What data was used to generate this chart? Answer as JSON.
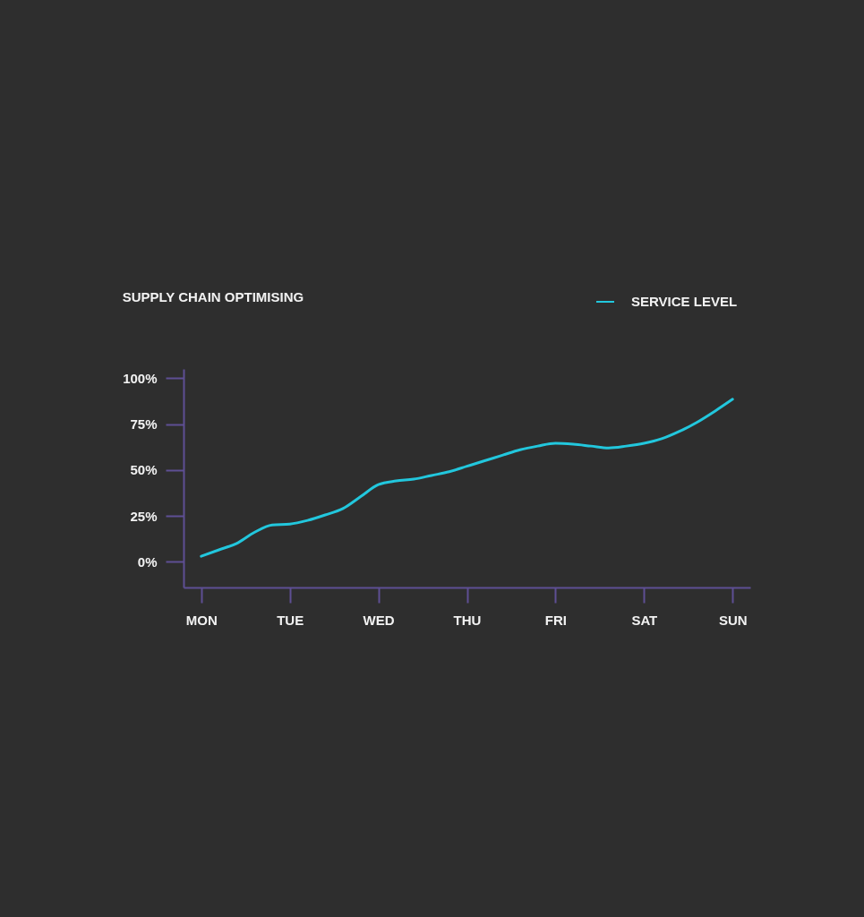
{
  "chart_data": {
    "type": "line",
    "title": "SUPPLY CHAIN OPTIMISING",
    "categories": [
      "MON",
      null,
      null,
      null,
      null,
      "TUE",
      null,
      null,
      null,
      null,
      "WED",
      null,
      null,
      null,
      null,
      "THU",
      null,
      null,
      null,
      null,
      "FRI",
      null,
      null,
      null,
      null,
      "SAT",
      null,
      null,
      null,
      null,
      "SUN"
    ],
    "ylim": [
      -14,
      105
    ],
    "yticks": [
      {
        "value": 0,
        "label": "0%"
      },
      {
        "value": 25,
        "label": "25%"
      },
      {
        "value": 50,
        "label": "50%"
      },
      {
        "value": 75,
        "label": "75%"
      },
      {
        "value": 100,
        "label": "100%"
      }
    ],
    "series": [
      {
        "name": "SERVICE LEVEL",
        "color": "#22c7dd",
        "values": [
          3,
          6.5,
          10,
          16,
          20,
          20.5,
          22.5,
          25.5,
          29,
          35.5,
          42,
          44,
          45,
          47,
          49,
          52,
          55,
          58,
          61,
          63,
          64.5,
          64,
          63,
          62,
          63,
          64.5,
          67,
          71,
          76,
          82,
          88.5
        ]
      }
    ],
    "legend": "top right",
    "grid": false
  }
}
